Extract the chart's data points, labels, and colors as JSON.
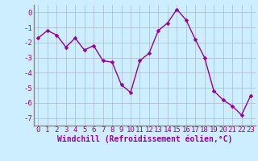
{
  "x": [
    0,
    1,
    2,
    3,
    4,
    5,
    6,
    7,
    8,
    9,
    10,
    11,
    12,
    13,
    14,
    15,
    16,
    17,
    18,
    19,
    20,
    21,
    22,
    23
  ],
  "y": [
    -1.7,
    -1.2,
    -1.5,
    -2.3,
    -1.7,
    -2.5,
    -2.2,
    -3.2,
    -3.3,
    -4.8,
    -5.3,
    -3.2,
    -2.7,
    -1.2,
    -0.7,
    0.2,
    -0.5,
    -1.8,
    -3.0,
    -5.2,
    -5.8,
    -6.2,
    -6.8,
    -5.5
  ],
  "line_color": "#990099",
  "marker": "D",
  "marker_size": 2.5,
  "line_width": 1.0,
  "bg_color": "#cceeff",
  "grid_color": "#aabbcc",
  "xlabel": "Windchill (Refroidissement éolien,°C)",
  "xlabel_fontsize": 7,
  "tick_fontsize": 6.5,
  "xlim": [
    -0.5,
    23.5
  ],
  "ylim": [
    -7.5,
    0.5
  ],
  "yticks": [
    0,
    -1,
    -2,
    -3,
    -4,
    -5,
    -6,
    -7
  ],
  "xticks": [
    0,
    1,
    2,
    3,
    4,
    5,
    6,
    7,
    8,
    9,
    10,
    11,
    12,
    13,
    14,
    15,
    16,
    17,
    18,
    19,
    20,
    21,
    22,
    23
  ]
}
